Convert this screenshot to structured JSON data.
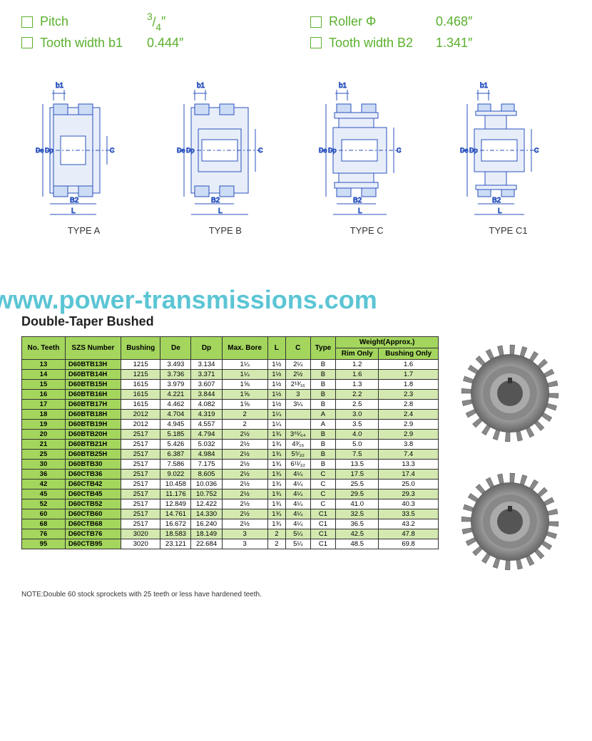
{
  "specs": [
    {
      "label": "Pitch",
      "value": "3/4″",
      "is_fraction": true,
      "num": "3",
      "den": "4"
    },
    {
      "label": "Roller Φ",
      "value": "0.468″"
    },
    {
      "label": "Tooth width b1",
      "value": "0.444″"
    },
    {
      "label": "Tooth width B2",
      "value": "1.341″"
    }
  ],
  "colors": {
    "accent": "#5bb02e",
    "watermark": "#5bc5d4",
    "table_header": "#a4d65e",
    "table_alt": "#d4e9b0",
    "diagram_stroke": "#2a52be"
  },
  "diagrams": [
    {
      "type": "TYPE A"
    },
    {
      "type": "TYPE B"
    },
    {
      "type": "TYPE C"
    },
    {
      "type": "TYPE C1"
    }
  ],
  "watermark": "www.power-transmissions.com",
  "title": "Double-Taper Bushed",
  "table": {
    "headers_top": [
      "No. Teeth",
      "SZS Number",
      "Bushing",
      "De",
      "Dp",
      "Max. Bore",
      "L",
      "C",
      "Type",
      "Weight(Approx.)"
    ],
    "headers_sub": [
      "Rim Only",
      "Bushing Only"
    ],
    "rows": [
      [
        "13",
        "D60BTB13H",
        "1215",
        "3.493",
        "3.134",
        "1¼",
        "1½",
        "2¼",
        "B",
        "1.2",
        "1.6"
      ],
      [
        "14",
        "D60BTB14H",
        "1215",
        "3.736",
        "3.371",
        "1¼",
        "1½",
        "2½",
        "B",
        "1.6",
        "1.7"
      ],
      [
        "15",
        "D60BTB15H",
        "1615",
        "3.979",
        "3.607",
        "1⅝",
        "1½",
        "2¹³⁄₁₆",
        "B",
        "1.3",
        "1.8"
      ],
      [
        "16",
        "D60BTB16H",
        "1615",
        "4.221",
        "3.844",
        "1⅝",
        "1½",
        "3",
        "B",
        "2.2",
        "2.3"
      ],
      [
        "17",
        "D60BTB17H",
        "1615",
        "4.462",
        "4.082",
        "1⅝",
        "1½",
        "3¼",
        "B",
        "2.5",
        "2.8"
      ],
      [
        "18",
        "D60BTB18H",
        "2012",
        "4.704",
        "4.319",
        "2",
        "1¼",
        "",
        "A",
        "3.0",
        "2.4"
      ],
      [
        "19",
        "D60BTB19H",
        "2012",
        "4.945",
        "4.557",
        "2",
        "1¼",
        "",
        "A",
        "3.5",
        "2.9"
      ],
      [
        "20",
        "D60BTB20H",
        "2517",
        "5.185",
        "4.794",
        "2½",
        "1¾",
        "3⁶¹⁄₆₄",
        "B",
        "4.0",
        "2.9"
      ],
      [
        "21",
        "D60BTB21H",
        "2517",
        "5.426",
        "5.032",
        "2½",
        "1¾",
        "4³⁄₁₆",
        "B",
        "5.0",
        "3.8"
      ],
      [
        "25",
        "D60BTB25H",
        "2517",
        "6.387",
        "4.984",
        "2½",
        "1¾",
        "5⁵⁄₃₂",
        "B",
        "7.5",
        "7.4"
      ],
      [
        "30",
        "D60BTB30",
        "2517",
        "7.586",
        "7.175",
        "2½",
        "1¾",
        "6¹¹⁄₃₂",
        "B",
        "13.5",
        "13.3"
      ],
      [
        "36",
        "D60CTB36",
        "2517",
        "9.022",
        "8.605",
        "2½",
        "1¾",
        "4¼",
        "C",
        "17.5",
        "17.4"
      ],
      [
        "42",
        "D60CTB42",
        "2517",
        "10.458",
        "10.036",
        "2½",
        "1¾",
        "4¼",
        "C",
        "25.5",
        "25.0"
      ],
      [
        "45",
        "D60CTB45",
        "2517",
        "11.176",
        "10.752",
        "2½",
        "1¾",
        "4¼",
        "C",
        "29.5",
        "29.3"
      ],
      [
        "52",
        "D60CTB52",
        "2517",
        "12.849",
        "12.422",
        "2½",
        "1¾",
        "4¼",
        "C",
        "41.0",
        "40.3"
      ],
      [
        "60",
        "D60CTB60",
        "2517",
        "14.761",
        "14.330",
        "2½",
        "1¾",
        "4¼",
        "C1",
        "32.5",
        "33.5"
      ],
      [
        "68",
        "D60CTB68",
        "2517",
        "16.672",
        "16.240",
        "2½",
        "1¾",
        "4¼",
        "C1",
        "36.5",
        "43.2"
      ],
      [
        "76",
        "D60CTB76",
        "3020",
        "18.583",
        "18.149",
        "3",
        "2",
        "5¼",
        "C1",
        "42.5",
        "47.8"
      ],
      [
        "95",
        "D60CTB95",
        "3020",
        "23.121",
        "22.684",
        "3",
        "2",
        "5¼",
        "C1",
        "48.5",
        "69.8"
      ]
    ]
  },
  "note": "NOTE:Double 60 stock sprockets with 25 teeth or less have hardened teeth."
}
